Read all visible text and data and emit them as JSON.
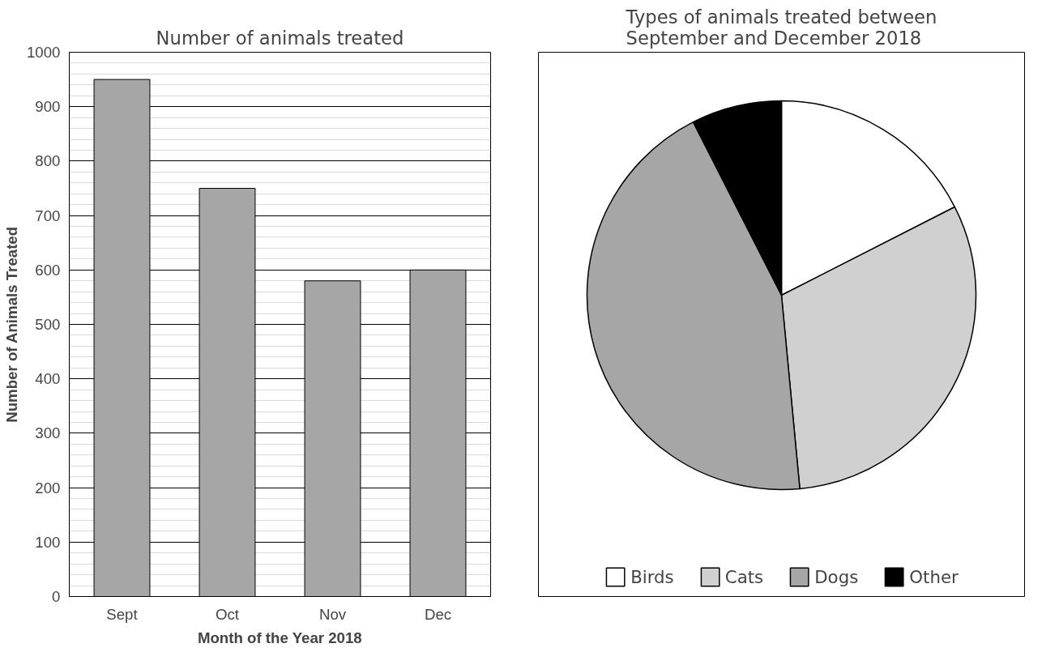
{
  "chart_data": [
    {
      "type": "bar",
      "title": "Number of animals treated",
      "xlabel": "Month of the Year 2018",
      "ylabel": "Number of Animals Treated",
      "categories": [
        "Sept",
        "Oct",
        "Nov",
        "Dec"
      ],
      "values": [
        950,
        750,
        580,
        600
      ],
      "color": "#a6a6a6",
      "ylim": [
        0,
        1000
      ],
      "yticks": [
        0,
        100,
        200,
        300,
        400,
        500,
        600,
        700,
        800,
        900,
        1000
      ],
      "grid": "y",
      "legend": false
    },
    {
      "type": "pie",
      "title": "Types of animals treated between September and December 2018",
      "categories": [
        "Birds",
        "Cats",
        "Dogs",
        "Other"
      ],
      "values": [
        17.5,
        31,
        44,
        7.5
      ],
      "colors": [
        "#ffffff",
        "#d0d0d0",
        "#a6a6a6",
        "#000000"
      ],
      "legend": "bottom"
    }
  ]
}
